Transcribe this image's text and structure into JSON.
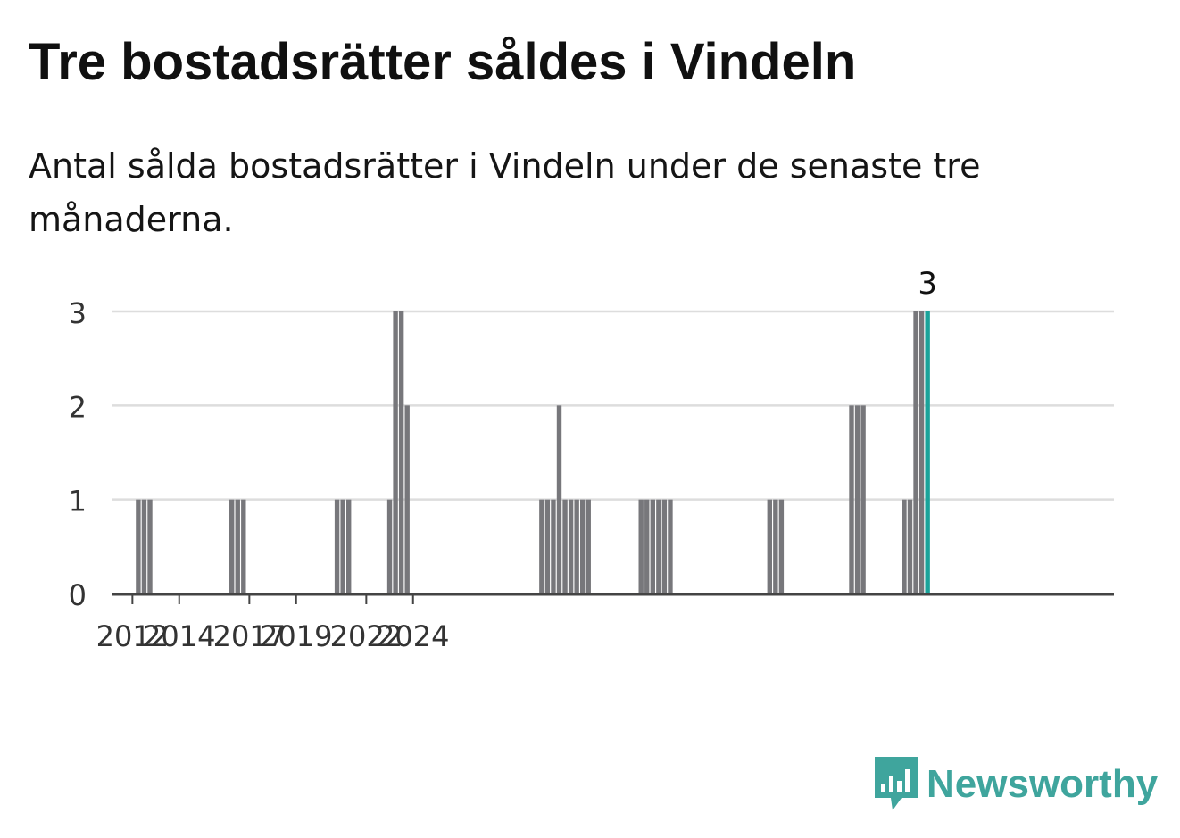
{
  "title": "Tre bostadsrätter såldes i Vindeln",
  "subtitle": "Antal sålda bostadsrätter i Vindeln under de senaste tre månaderna.",
  "brand": {
    "name": "Newsworthy",
    "color": "#3fa59d",
    "icon": "newsworthy-logo-icon"
  },
  "colors": {
    "bar": "#77777b",
    "highlight": "#1aa39a",
    "grid": "#dddddd",
    "axis": "#444444"
  },
  "chart_data": {
    "type": "bar",
    "x_unit": "quarter",
    "x_range": [
      "2011-Q2",
      "2024-Q4"
    ],
    "ylim": [
      0,
      3
    ],
    "yticks": [
      0,
      1,
      2,
      3
    ],
    "xticks": [
      "2012",
      "2014",
      "2017",
      "2019",
      "2022",
      "2024"
    ],
    "grid": true,
    "highlight_label": "3",
    "values": [
      0,
      0,
      0,
      0,
      1,
      1,
      1,
      0,
      0,
      0,
      0,
      0,
      0,
      0,
      0,
      0,
      0,
      0,
      0,
      0,
      1,
      1,
      1,
      0,
      0,
      0,
      0,
      0,
      0,
      0,
      0,
      0,
      0,
      0,
      0,
      0,
      0,
      0,
      1,
      1,
      1,
      0,
      0,
      0,
      0,
      0,
      0,
      1,
      3,
      3,
      2,
      0,
      0,
      0,
      0,
      0,
      0,
      0,
      0,
      0,
      0,
      0,
      0,
      0,
      0,
      0,
      0,
      0,
      0,
      0,
      0,
      0,
      0,
      1,
      1,
      1,
      2,
      1,
      1,
      1,
      1,
      1,
      0,
      0,
      0,
      0,
      0,
      0,
      0,
      0,
      1,
      1,
      1,
      1,
      1,
      1,
      0,
      0,
      0,
      0,
      0,
      0,
      0,
      0,
      0,
      0,
      0,
      0,
      0,
      0,
      0,
      0,
      1,
      1,
      1,
      0,
      0,
      0,
      0,
      0,
      0,
      0,
      0,
      0,
      0,
      0,
      2,
      2,
      2,
      0,
      0,
      0,
      0,
      0,
      0,
      1,
      1,
      3,
      3,
      3
    ]
  }
}
